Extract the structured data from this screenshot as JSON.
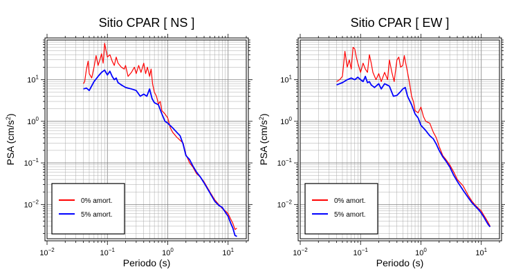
{
  "chart_data": [
    {
      "type": "line",
      "title": "Sitio CPAR [ NS ]",
      "xlabel": "Periodo (s)",
      "ylabel_main": "PSA (cm/s",
      "ylabel_sup": "2",
      "ylabel_close": ")",
      "x_scale": "log",
      "y_scale": "log",
      "xlim": [
        0.01,
        20
      ],
      "ylim": [
        0.0015,
        90
      ],
      "x_ticks": [
        {
          "v": 0.01,
          "base": "10",
          "exp": "−2"
        },
        {
          "v": 0.1,
          "base": "10",
          "exp": "−1"
        },
        {
          "v": 1,
          "base": "10",
          "exp": "0"
        },
        {
          "v": 10,
          "base": "10",
          "exp": "1"
        }
      ],
      "y_ticks": [
        {
          "v": 0.01,
          "base": "10",
          "exp": "−2"
        },
        {
          "v": 0.1,
          "base": "10",
          "exp": "−1"
        },
        {
          "v": 1,
          "base": "10",
          "exp": "0"
        },
        {
          "v": 10,
          "base": "10",
          "exp": "1"
        }
      ],
      "grid": true,
      "legend_placement": "bottom-left",
      "series": [
        {
          "name": "0% amort.",
          "color": "#ff0000",
          "points": [
            [
              0.04,
              8
            ],
            [
              0.042,
              9
            ],
            [
              0.045,
              18
            ],
            [
              0.048,
              28
            ],
            [
              0.05,
              14
            ],
            [
              0.055,
              11
            ],
            [
              0.06,
              20
            ],
            [
              0.065,
              38
            ],
            [
              0.07,
              22
            ],
            [
              0.075,
              30
            ],
            [
              0.08,
              42
            ],
            [
              0.085,
              25
            ],
            [
              0.09,
              75
            ],
            [
              0.095,
              50
            ],
            [
              0.1,
              35
            ],
            [
              0.11,
              40
            ],
            [
              0.12,
              28
            ],
            [
              0.13,
              22
            ],
            [
              0.14,
              35
            ],
            [
              0.15,
              25
            ],
            [
              0.17,
              20
            ],
            [
              0.19,
              18
            ],
            [
              0.2,
              22
            ],
            [
              0.22,
              12
            ],
            [
              0.25,
              15
            ],
            [
              0.28,
              20
            ],
            [
              0.3,
              14
            ],
            [
              0.33,
              22
            ],
            [
              0.36,
              15
            ],
            [
              0.4,
              25
            ],
            [
              0.43,
              14
            ],
            [
              0.46,
              20
            ],
            [
              0.5,
              12
            ],
            [
              0.53,
              18
            ],
            [
              0.56,
              8
            ],
            [
              0.6,
              5
            ],
            [
              0.65,
              4
            ],
            [
              0.7,
              2.6
            ],
            [
              0.75,
              3
            ],
            [
              0.8,
              1.8
            ],
            [
              0.9,
              1.5
            ],
            [
              1,
              1.2
            ],
            [
              1.1,
              0.7
            ],
            [
              1.2,
              0.55
            ],
            [
              1.4,
              0.42
            ],
            [
              1.6,
              0.35
            ],
            [
              1.8,
              0.3
            ],
            [
              2,
              0.16
            ],
            [
              2.3,
              0.1
            ],
            [
              2.6,
              0.08
            ],
            [
              3,
              0.055
            ],
            [
              3.5,
              0.045
            ],
            [
              4,
              0.035
            ],
            [
              5,
              0.02
            ],
            [
              6,
              0.013
            ],
            [
              7,
              0.01
            ],
            [
              8,
              0.008
            ],
            [
              9,
              0.007
            ],
            [
              10,
              0.006
            ],
            [
              11,
              0.0045
            ],
            [
              12,
              0.0035
            ],
            [
              13,
              0.0025
            ],
            [
              14,
              0.0027
            ]
          ]
        },
        {
          "name": "5% amort.",
          "color": "#0000ff",
          "points": [
            [
              0.04,
              6
            ],
            [
              0.045,
              6.3
            ],
            [
              0.05,
              5.5
            ],
            [
              0.06,
              9
            ],
            [
              0.07,
              12
            ],
            [
              0.08,
              15
            ],
            [
              0.09,
              17
            ],
            [
              0.1,
              13
            ],
            [
              0.11,
              16
            ],
            [
              0.12,
              12
            ],
            [
              0.13,
              10
            ],
            [
              0.14,
              11
            ],
            [
              0.15,
              8.5
            ],
            [
              0.17,
              7.5
            ],
            [
              0.2,
              6.5
            ],
            [
              0.25,
              6
            ],
            [
              0.3,
              5.5
            ],
            [
              0.35,
              4
            ],
            [
              0.4,
              4.5
            ],
            [
              0.45,
              4
            ],
            [
              0.5,
              6
            ],
            [
              0.55,
              3.5
            ],
            [
              0.6,
              2.8
            ],
            [
              0.7,
              2.5
            ],
            [
              0.8,
              1.5
            ],
            [
              0.9,
              1
            ],
            [
              1,
              0.9
            ],
            [
              1.2,
              0.7
            ],
            [
              1.4,
              0.55
            ],
            [
              1.6,
              0.45
            ],
            [
              1.8,
              0.28
            ],
            [
              2,
              0.15
            ],
            [
              2.3,
              0.12
            ],
            [
              2.6,
              0.085
            ],
            [
              3,
              0.06
            ],
            [
              3.5,
              0.045
            ],
            [
              4,
              0.033
            ],
            [
              5,
              0.019
            ],
            [
              6,
              0.012
            ],
            [
              7,
              0.0095
            ],
            [
              8,
              0.0085
            ],
            [
              9,
              0.0065
            ],
            [
              10,
              0.0052
            ],
            [
              11,
              0.0036
            ],
            [
              12,
              0.0027
            ],
            [
              13,
              0.0018
            ],
            [
              14,
              0.0017
            ]
          ]
        }
      ]
    },
    {
      "type": "line",
      "title": "Sitio CPAR [ EW ]",
      "xlabel": "Periodo (s)",
      "ylabel_main": "PSA (cm/s",
      "ylabel_sup": "2",
      "ylabel_close": ")",
      "x_scale": "log",
      "y_scale": "log",
      "xlim": [
        0.01,
        20
      ],
      "ylim": [
        0.0015,
        90
      ],
      "x_ticks": [
        {
          "v": 0.01,
          "base": "10",
          "exp": "−2"
        },
        {
          "v": 0.1,
          "base": "10",
          "exp": "−1"
        },
        {
          "v": 1,
          "base": "10",
          "exp": "0"
        },
        {
          "v": 10,
          "base": "10",
          "exp": "1"
        }
      ],
      "y_ticks": [
        {
          "v": 0.01,
          "base": "10",
          "exp": "−2"
        },
        {
          "v": 0.1,
          "base": "10",
          "exp": "−1"
        },
        {
          "v": 1,
          "base": "10",
          "exp": "0"
        },
        {
          "v": 10,
          "base": "10",
          "exp": "1"
        }
      ],
      "grid": true,
      "legend_placement": "bottom-left",
      "series": [
        {
          "name": "0% amort.",
          "color": "#ff0000",
          "points": [
            [
              0.04,
              9
            ],
            [
              0.045,
              10
            ],
            [
              0.05,
              12
            ],
            [
              0.055,
              48
            ],
            [
              0.06,
              20
            ],
            [
              0.065,
              30
            ],
            [
              0.07,
              18
            ],
            [
              0.075,
              60
            ],
            [
              0.08,
              55
            ],
            [
              0.085,
              35
            ],
            [
              0.09,
              25
            ],
            [
              0.1,
              15
            ],
            [
              0.11,
              25
            ],
            [
              0.12,
              18
            ],
            [
              0.13,
              15
            ],
            [
              0.14,
              40
            ],
            [
              0.15,
              25
            ],
            [
              0.16,
              15
            ],
            [
              0.18,
              10
            ],
            [
              0.2,
              14
            ],
            [
              0.22,
              9
            ],
            [
              0.25,
              15
            ],
            [
              0.28,
              10
            ],
            [
              0.3,
              30
            ],
            [
              0.33,
              15
            ],
            [
              0.36,
              9
            ],
            [
              0.4,
              30
            ],
            [
              0.43,
              35
            ],
            [
              0.46,
              20
            ],
            [
              0.5,
              22
            ],
            [
              0.53,
              38
            ],
            [
              0.56,
              25
            ],
            [
              0.6,
              15
            ],
            [
              0.65,
              8
            ],
            [
              0.7,
              4
            ],
            [
              0.75,
              3
            ],
            [
              0.8,
              1.8
            ],
            [
              0.9,
              1.6
            ],
            [
              1,
              2.2
            ],
            [
              1.1,
              1.3
            ],
            [
              1.2,
              1
            ],
            [
              1.4,
              0.9
            ],
            [
              1.6,
              0.55
            ],
            [
              1.8,
              0.4
            ],
            [
              2,
              0.25
            ],
            [
              2.3,
              0.15
            ],
            [
              2.6,
              0.12
            ],
            [
              3,
              0.09
            ],
            [
              3.5,
              0.06
            ],
            [
              4,
              0.04
            ],
            [
              5,
              0.028
            ],
            [
              6,
              0.017
            ],
            [
              7,
              0.012
            ],
            [
              8,
              0.0095
            ],
            [
              9,
              0.008
            ],
            [
              10,
              0.007
            ],
            [
              11,
              0.0055
            ],
            [
              12,
              0.0045
            ],
            [
              13,
              0.0037
            ],
            [
              14,
              0.003
            ]
          ]
        },
        {
          "name": "5% amort.",
          "color": "#0000ff",
          "points": [
            [
              0.04,
              7.5
            ],
            [
              0.05,
              8.5
            ],
            [
              0.06,
              10
            ],
            [
              0.07,
              11
            ],
            [
              0.08,
              10
            ],
            [
              0.09,
              11.5
            ],
            [
              0.1,
              10
            ],
            [
              0.11,
              9
            ],
            [
              0.12,
              12
            ],
            [
              0.13,
              8.5
            ],
            [
              0.14,
              9
            ],
            [
              0.15,
              7.5
            ],
            [
              0.17,
              6.5
            ],
            [
              0.2,
              8
            ],
            [
              0.22,
              6
            ],
            [
              0.25,
              8
            ],
            [
              0.3,
              7
            ],
            [
              0.35,
              4
            ],
            [
              0.4,
              4.2
            ],
            [
              0.45,
              5
            ],
            [
              0.5,
              6
            ],
            [
              0.55,
              6.5
            ],
            [
              0.6,
              4
            ],
            [
              0.7,
              2.5
            ],
            [
              0.8,
              1.5
            ],
            [
              0.9,
              1.2
            ],
            [
              1,
              0.8
            ],
            [
              1.2,
              0.6
            ],
            [
              1.4,
              0.45
            ],
            [
              1.6,
              0.38
            ],
            [
              1.8,
              0.28
            ],
            [
              2,
              0.2
            ],
            [
              2.3,
              0.14
            ],
            [
              2.6,
              0.11
            ],
            [
              3,
              0.08
            ],
            [
              3.5,
              0.05
            ],
            [
              4,
              0.036
            ],
            [
              5,
              0.022
            ],
            [
              6,
              0.015
            ],
            [
              7,
              0.011
            ],
            [
              8,
              0.009
            ],
            [
              9,
              0.0075
            ],
            [
              10,
              0.0062
            ],
            [
              11,
              0.005
            ],
            [
              12,
              0.004
            ],
            [
              13,
              0.0033
            ],
            [
              14,
              0.0029
            ]
          ]
        }
      ]
    }
  ]
}
